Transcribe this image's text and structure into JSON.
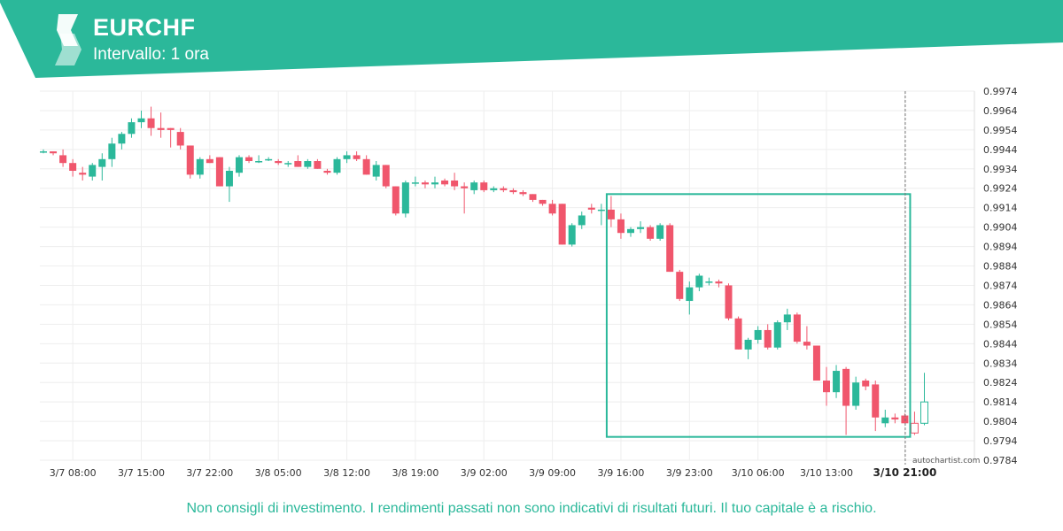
{
  "header": {
    "symbol": "EURCHF",
    "interval": "Intervallo: 1 ora",
    "brand_color": "#2bb89a",
    "logo_icon": "autochartist-logo-icon"
  },
  "footer": {
    "disclaimer": "Non consigli di investimento. I rendimenti passati non sono indicativi di risultati futuri. Il tuo capitale è a rischio.",
    "watermark": "autochartist.com"
  },
  "chart_data": {
    "type": "candlestick",
    "title": "EURCHF",
    "subtitle": "Intervallo: 1 ora",
    "up_color": "#2bb89a",
    "down_color": "#f0566c",
    "grid": true,
    "ylim": [
      0.9784,
      0.9974
    ],
    "y_ticks": [
      "0.9974",
      "0.9964",
      "0.9954",
      "0.9944",
      "0.9934",
      "0.9924",
      "0.9914",
      "0.9904",
      "0.9894",
      "0.9884",
      "0.9874",
      "0.9864",
      "0.9854",
      "0.9844",
      "0.9834",
      "0.9824",
      "0.9814",
      "0.9804",
      "0.9794",
      "0.9784"
    ],
    "x_ticks": [
      "3/7 08:00",
      "3/7 15:00",
      "3/7 22:00",
      "3/8 05:00",
      "3/8 12:00",
      "3/8 19:00",
      "3/9 02:00",
      "3/9 09:00",
      "3/9 16:00",
      "3/9 23:00",
      "3/10 06:00",
      "3/10 13:00",
      "3/10 21:00"
    ],
    "highlighted_tick": "3/10 21:00",
    "x_tick_index": [
      3,
      10,
      17,
      24,
      31,
      38,
      45,
      52,
      59,
      66,
      73,
      80,
      88
    ],
    "candles": [
      [
        0.9943,
        0.9944,
        0.9942,
        0.9943
      ],
      [
        0.9943,
        0.9943,
        0.9941,
        0.9942
      ],
      [
        0.9941,
        0.9944,
        0.9935,
        0.9937
      ],
      [
        0.9937,
        0.9939,
        0.993,
        0.9933
      ],
      [
        0.9932,
        0.9935,
        0.9928,
        0.9931
      ],
      [
        0.993,
        0.9937,
        0.9928,
        0.9936
      ],
      [
        0.9935,
        0.9942,
        0.9928,
        0.9939
      ],
      [
        0.9939,
        0.995,
        0.9935,
        0.9947
      ],
      [
        0.9947,
        0.9953,
        0.9944,
        0.9952
      ],
      [
        0.9952,
        0.996,
        0.995,
        0.9958
      ],
      [
        0.9958,
        0.9964,
        0.9955,
        0.996
      ],
      [
        0.996,
        0.9966,
        0.9951,
        0.9955
      ],
      [
        0.9955,
        0.9963,
        0.995,
        0.9954
      ],
      [
        0.9955,
        0.9955,
        0.9945,
        0.9954
      ],
      [
        0.9953,
        0.9955,
        0.9944,
        0.9946
      ],
      [
        0.9946,
        0.9946,
        0.9929,
        0.9931
      ],
      [
        0.9931,
        0.994,
        0.9929,
        0.9939
      ],
      [
        0.9939,
        0.9941,
        0.9937,
        0.9937
      ],
      [
        0.994,
        0.994,
        0.9925,
        0.9925
      ],
      [
        0.9925,
        0.9935,
        0.9917,
        0.9933
      ],
      [
        0.9932,
        0.9941,
        0.993,
        0.994
      ],
      [
        0.994,
        0.9941,
        0.9937,
        0.9938
      ],
      [
        0.9938,
        0.9941,
        0.9937,
        0.9938
      ],
      [
        0.9939,
        0.994,
        0.9938,
        0.9939
      ],
      [
        0.9938,
        0.9939,
        0.9936,
        0.9937
      ],
      [
        0.9937,
        0.9938,
        0.9935,
        0.9937
      ],
      [
        0.9938,
        0.9941,
        0.9935,
        0.9935
      ],
      [
        0.9935,
        0.9939,
        0.9934,
        0.9938
      ],
      [
        0.9938,
        0.9939,
        0.9934,
        0.9934
      ],
      [
        0.9933,
        0.9934,
        0.9931,
        0.9932
      ],
      [
        0.9932,
        0.994,
        0.9931,
        0.9939
      ],
      [
        0.9939,
        0.9943,
        0.9937,
        0.9941
      ],
      [
        0.9941,
        0.9943,
        0.9938,
        0.9939
      ],
      [
        0.9939,
        0.9941,
        0.9931,
        0.9931
      ],
      [
        0.993,
        0.9938,
        0.9928,
        0.9936
      ],
      [
        0.9936,
        0.9936,
        0.9924,
        0.9925
      ],
      [
        0.9925,
        0.9925,
        0.991,
        0.9911
      ],
      [
        0.9911,
        0.9928,
        0.9909,
        0.9927
      ],
      [
        0.9927,
        0.993,
        0.9925,
        0.9927
      ],
      [
        0.9927,
        0.9928,
        0.9924,
        0.9926
      ],
      [
        0.9926,
        0.993,
        0.9924,
        0.9927
      ],
      [
        0.9928,
        0.9929,
        0.9925,
        0.9926
      ],
      [
        0.9928,
        0.9932,
        0.9923,
        0.9925
      ],
      [
        0.9925,
        0.9927,
        0.9911,
        0.9924
      ],
      [
        0.9923,
        0.9928,
        0.9921,
        0.9927
      ],
      [
        0.9927,
        0.9928,
        0.9922,
        0.9923
      ],
      [
        0.9923,
        0.9925,
        0.9922,
        0.9924
      ],
      [
        0.9924,
        0.9925,
        0.9922,
        0.9923
      ],
      [
        0.9923,
        0.9924,
        0.9921,
        0.9922
      ],
      [
        0.9922,
        0.9923,
        0.992,
        0.9921
      ],
      [
        0.9921,
        0.9921,
        0.9917,
        0.9918
      ],
      [
        0.9918,
        0.9918,
        0.9915,
        0.9916
      ],
      [
        0.9916,
        0.9918,
        0.991,
        0.9911
      ],
      [
        0.9916,
        0.9916,
        0.9895,
        0.9895
      ],
      [
        0.9895,
        0.9906,
        0.9894,
        0.9905
      ],
      [
        0.9905,
        0.9912,
        0.9903,
        0.991
      ],
      [
        0.9914,
        0.9916,
        0.9911,
        0.9913
      ],
      [
        0.9913,
        0.9916,
        0.9905,
        0.9913
      ],
      [
        0.9913,
        0.992,
        0.9904,
        0.9908
      ],
      [
        0.9908,
        0.9911,
        0.9898,
        0.9901
      ],
      [
        0.9901,
        0.9904,
        0.9899,
        0.9903
      ],
      [
        0.9903,
        0.9907,
        0.9901,
        0.9904
      ],
      [
        0.9904,
        0.9905,
        0.9897,
        0.9898
      ],
      [
        0.9898,
        0.9906,
        0.9897,
        0.9905
      ],
      [
        0.9905,
        0.9906,
        0.9881,
        0.9881
      ],
      [
        0.9881,
        0.9882,
        0.9866,
        0.9867
      ],
      [
        0.9866,
        0.9876,
        0.9859,
        0.9873
      ],
      [
        0.9873,
        0.988,
        0.9871,
        0.9879
      ],
      [
        0.9876,
        0.9878,
        0.9874,
        0.9876
      ],
      [
        0.9876,
        0.9877,
        0.9873,
        0.9875
      ],
      [
        0.9874,
        0.9875,
        0.9856,
        0.9857
      ],
      [
        0.9857,
        0.9858,
        0.9841,
        0.9841
      ],
      [
        0.9841,
        0.9847,
        0.9836,
        0.9846
      ],
      [
        0.9846,
        0.9853,
        0.9844,
        0.9851
      ],
      [
        0.9851,
        0.9854,
        0.9841,
        0.9842
      ],
      [
        0.9842,
        0.9856,
        0.9841,
        0.9855
      ],
      [
        0.9855,
        0.9862,
        0.9851,
        0.9859
      ],
      [
        0.9859,
        0.986,
        0.9844,
        0.9845
      ],
      [
        0.9845,
        0.9853,
        0.9841,
        0.9843
      ],
      [
        0.9843,
        0.9843,
        0.9825,
        0.9825
      ],
      [
        0.9825,
        0.9832,
        0.9812,
        0.9819
      ],
      [
        0.9819,
        0.9833,
        0.9816,
        0.983
      ],
      [
        0.9831,
        0.9832,
        0.9797,
        0.9812
      ],
      [
        0.9812,
        0.9827,
        0.981,
        0.9824
      ],
      [
        0.9825,
        0.9826,
        0.982,
        0.9822
      ],
      [
        0.9823,
        0.9825,
        0.9799,
        0.9806
      ],
      [
        0.9803,
        0.981,
        0.9801,
        0.9806
      ],
      [
        0.9806,
        0.9808,
        0.9803,
        0.9805
      ],
      [
        0.9807,
        0.9808,
        0.9803,
        0.9803
      ]
    ],
    "future_candles": [
      [
        0.9803,
        0.9809,
        0.9797,
        0.9798
      ],
      [
        0.9803,
        0.9829,
        0.9802,
        0.9814
      ]
    ],
    "pattern_box": {
      "start_index": 58,
      "end_index": 89,
      "top": 0.9921,
      "bottom": 0.9796,
      "color": "#2bb89a"
    },
    "current_time_index": 88.5
  }
}
